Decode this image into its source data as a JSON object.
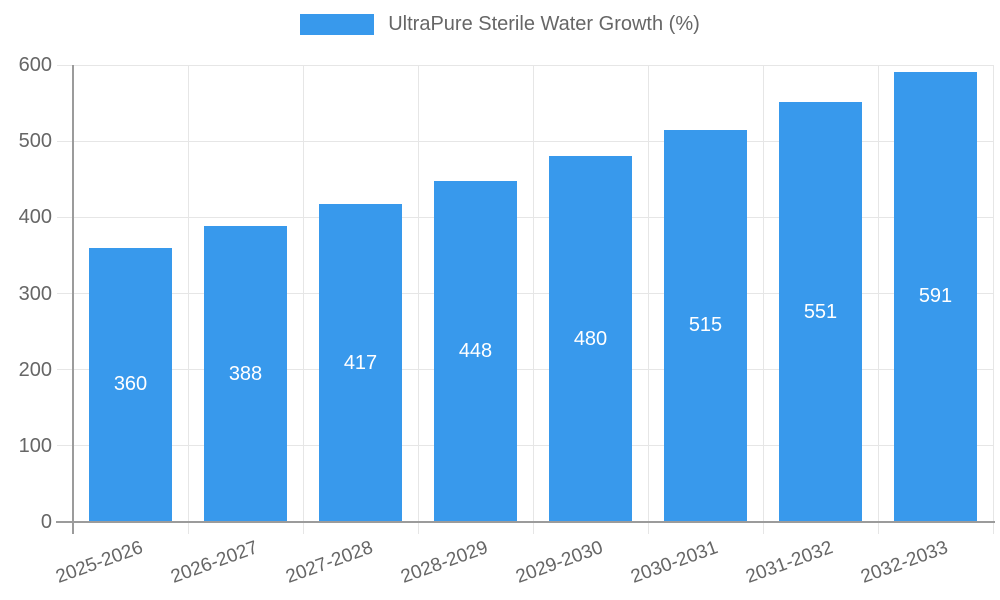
{
  "chart_data": {
    "type": "bar",
    "legend": "UltraPure Sterile Water Growth (%)",
    "legend_position": "top",
    "categories": [
      "2025-2026",
      "2026-2027",
      "2027-2028",
      "2028-2029",
      "2029-2030",
      "2030-2031",
      "2031-2032",
      "2032-2033"
    ],
    "values": [
      360,
      388,
      417,
      448,
      480,
      515,
      551,
      591
    ],
    "xlabel": "",
    "ylabel": "",
    "ylim": [
      0,
      600
    ],
    "yticks": [
      0,
      100,
      200,
      300,
      400,
      500,
      600
    ],
    "grid": true,
    "bar_color": "#3899ec",
    "value_label_color": "#ffffff",
    "axis_text_color": "#666666",
    "grid_color": "#e6e6e6",
    "axis_line_color": "#9b9b9b"
  }
}
